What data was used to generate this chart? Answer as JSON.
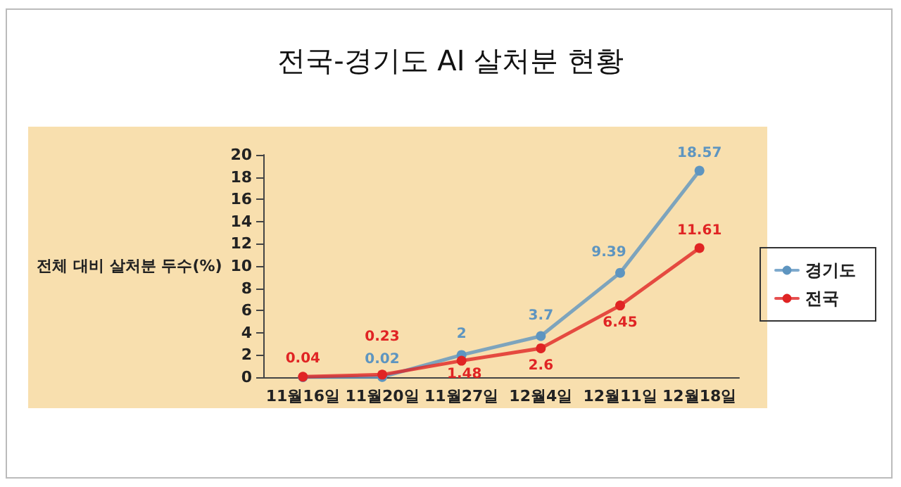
{
  "chart_data": {
    "type": "line",
    "title": "전국-경기도 AI 살처분 현황",
    "ylabel": "전체 대비 살처분 두수(%)",
    "categories": [
      "11월16일",
      "11월20일",
      "11월27일",
      "12월4일",
      "12월11일",
      "12월18일"
    ],
    "series": [
      {
        "name": "경기도",
        "color": "#5e95c0",
        "values": [
          0,
          0.02,
          2,
          3.7,
          9.39,
          18.57
        ],
        "value_labels": [
          null,
          "0.02",
          "2",
          "3.7",
          "9.39",
          "18.57"
        ]
      },
      {
        "name": "전국",
        "color": "#e02424",
        "values": [
          0.04,
          0.23,
          1.48,
          2.6,
          6.45,
          11.61
        ],
        "value_labels": [
          "0.04",
          "0.23",
          "1.48",
          "2.6",
          "6.45",
          "11.61"
        ]
      }
    ],
    "ylim": [
      0,
      20
    ],
    "yticks": [
      0,
      2,
      4,
      6,
      8,
      10,
      12,
      14,
      16,
      18,
      20
    ],
    "grid": false,
    "legend": "right",
    "marker": "circle",
    "line_style": "solid"
  }
}
